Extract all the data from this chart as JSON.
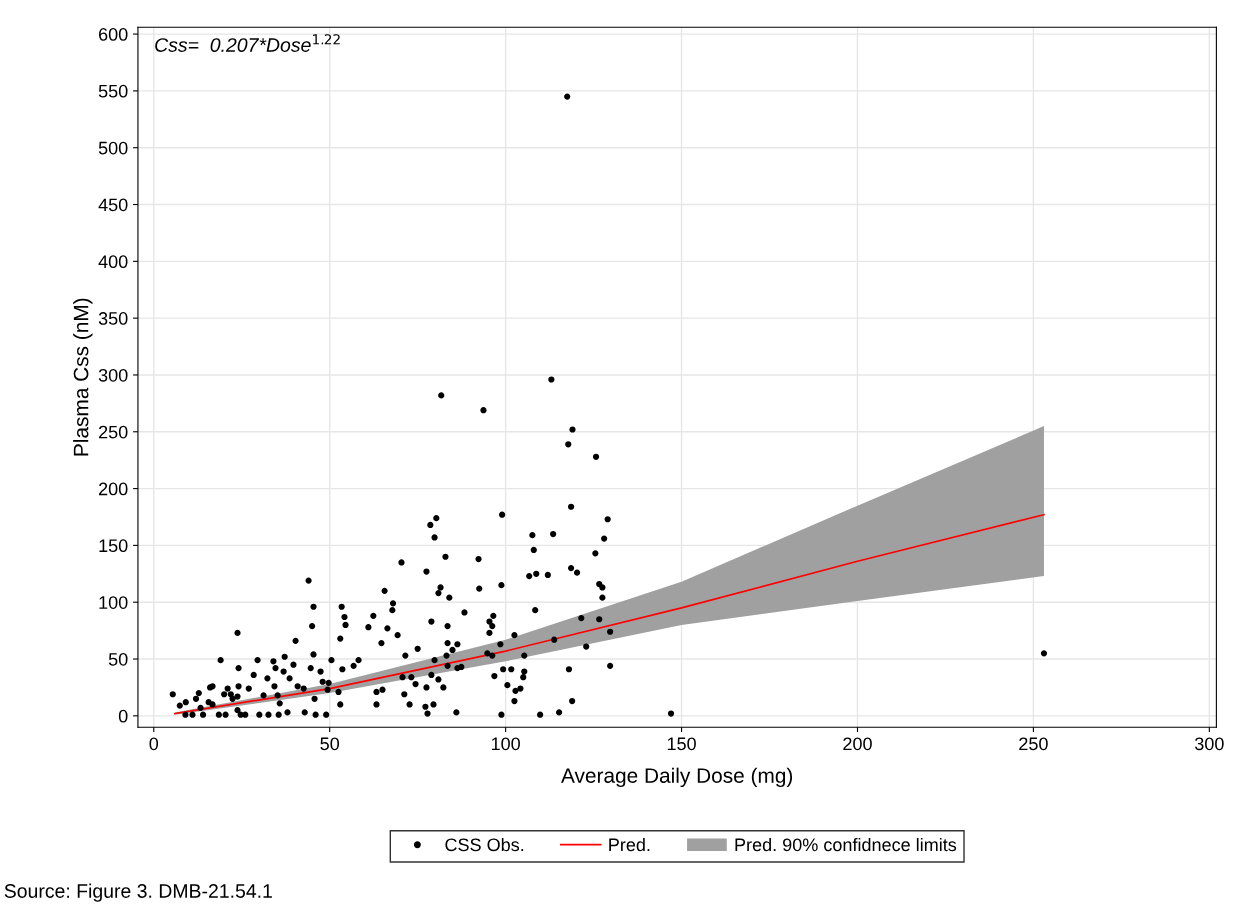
{
  "chart_data": {
    "type": "scatter",
    "xlabel": "Average Daily Dose (mg)",
    "ylabel": "Plasma Css (nM)",
    "annotations": [
      "Css=  0.207*Dose$^{1.22}$",
      "Source: Figure 3. DMB-21.54.1"
    ],
    "xlim": [
      -4.5,
      302
    ],
    "ylim": [
      -10,
      606
    ],
    "xticks": [
      0,
      50,
      100,
      150,
      200,
      250,
      300
    ],
    "yticks": [
      0,
      50,
      100,
      150,
      200,
      250,
      300,
      350,
      400,
      450,
      500,
      550,
      600
    ],
    "grid": true,
    "legend": "bottom",
    "series": [
      {
        "name": "CSS Obs.",
        "color": "#000000",
        "marker": "circle",
        "x": [
          5.4,
          7.4,
          9.1,
          9,
          11,
          12,
          12.8,
          13.3,
          14,
          16,
          16.7,
          15.6,
          16.7,
          19,
          18.5,
          20.4,
          20,
          21,
          21.9,
          22.4,
          23.8,
          24.1,
          24.1,
          23.8,
          23.8,
          24.7,
          26,
          27,
          28.4,
          29.5,
          31.2,
          30,
          32.3,
          32.6,
          34,
          34.6,
          34.3,
          35.2,
          35.8,
          35.5,
          37.2,
          36.9,
          38,
          38.6,
          39.7,
          40.3,
          40.9,
          42.6,
          42.9,
          44,
          45.4,
          45,
          44.6,
          45.4,
          45.7,
          46,
          47.4,
          48,
          49,
          49.7,
          50.5,
          49.4,
          52.5,
          53,
          53.6,
          53,
          53.4,
          54.2,
          54.5,
          56.8,
          58.2,
          61,
          62.4,
          63.3,
          63.3,
          65,
          64.7,
          65.6,
          66.4,
          113,
          81.7,
          93.7,
          119,
          117.8,
          125.7,
          118.6,
          99,
          129,
          78.6,
          80.3,
          79.8,
          107.6,
          113.5,
          108,
          128,
          125.5,
          70.4,
          82.9,
          92.3,
          77.5,
          106.7,
          108.7,
          112,
          118.6,
          120.3,
          126.6,
          127.5,
          127.5,
          81.5,
          80.9,
          84,
          92.5,
          98.8,
          68,
          67.8,
          108.4,
          88.3,
          78.9,
          83.5,
          96.5,
          95.4,
          96.2,
          95.4,
          121.5,
          126.6,
          129.7,
          69.3,
          75,
          71.5,
          83.5,
          86.3,
          84.9,
          102.5,
          98.5,
          113.8,
          122.9,
          94.8,
          96.2,
          105.3,
          83.2,
          79.8,
          86.3,
          87.4,
          83.5,
          129.7,
          70.7,
          73.2,
          74.4,
          78.9,
          80.9,
          82.3,
          77.5,
          71.2,
          72.7,
          77.2,
          77.8,
          79.5,
          86,
          96.8,
          99.3,
          101.6,
          105.3,
          105,
          100.5,
          104.2,
          102.8,
          102.5,
          98.8,
          109.8,
          115.2,
          118,
          118.9,
          117.5,
          253,
          147
        ],
        "values": [
          19,
          9,
          12,
          1,
          1,
          15,
          20,
          7,
          1,
          25,
          26,
          12,
          10,
          49,
          1,
          1,
          19,
          24,
          19,
          15,
          73,
          42,
          26,
          17,
          5,
          1,
          1,
          24,
          36,
          49,
          18,
          1,
          33,
          1,
          48,
          42,
          26,
          18,
          11,
          1,
          52,
          39,
          3,
          33,
          45,
          66,
          26,
          24,
          3,
          119,
          96,
          79,
          42,
          54,
          15,
          1,
          39,
          30,
          1,
          29,
          49,
          23,
          21,
          10,
          41,
          68,
          96,
          87,
          80,
          44,
          49,
          78,
          88,
          21,
          10,
          23,
          64,
          110,
          77,
          296,
          282,
          269,
          252,
          239,
          228,
          184,
          177,
          173,
          168,
          174,
          157,
          159,
          160,
          146,
          156,
          143,
          135,
          140,
          138,
          127,
          123,
          125,
          124,
          130,
          126,
          116,
          113,
          104,
          113,
          108,
          104,
          112,
          115,
          99,
          93,
          93,
          91,
          83,
          79,
          88,
          83,
          79,
          73,
          86,
          85,
          74,
          71,
          59,
          53,
          64,
          63,
          58,
          71,
          63,
          67,
          61,
          55,
          53,
          53,
          53,
          49,
          42,
          43,
          44,
          44,
          34,
          34,
          28,
          36,
          32,
          25,
          25,
          19,
          10,
          8,
          2,
          10,
          3,
          35,
          41,
          41,
          39,
          34,
          27,
          24,
          22,
          13,
          1,
          1,
          3,
          41,
          13,
          545,
          55,
          2
        ]
      },
      {
        "type": "line",
        "name": "Pred.",
        "color": "#ff0000",
        "line_style": "solid",
        "marker": "none",
        "x": [
          6,
          50,
          100,
          150,
          200,
          253
        ],
        "values": [
          2,
          24,
          57,
          95,
          136,
          177
        ],
        "lower": [
          1,
          20,
          48,
          80,
          101,
          123
        ],
        "upper": [
          3,
          28,
          67,
          118,
          185,
          255
        ]
      },
      {
        "type": "area",
        "name": "Pred. 90% confidnece limits",
        "color": "#a0a0a0"
      }
    ]
  }
}
